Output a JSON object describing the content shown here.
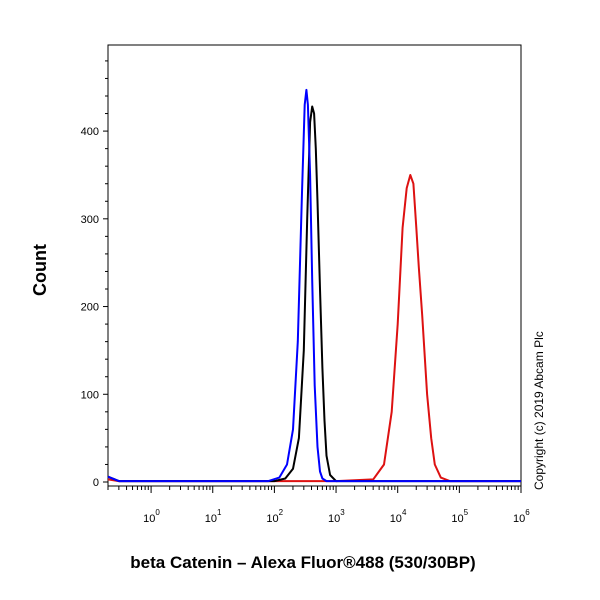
{
  "chart_data": {
    "type": "line",
    "title": "",
    "xlabel": "beta Catenin – Alexa Fluor®488 (530/30BP)",
    "ylabel": "Count",
    "x_scale": "log",
    "xlim": [
      0.2,
      1000000
    ],
    "ylim": [
      0,
      530
    ],
    "y_ticks": [
      0,
      100,
      200,
      300,
      400
    ],
    "x_ticks": [
      {
        "value": 1,
        "base": "10",
        "exp": "0"
      },
      {
        "value": 10,
        "base": "10",
        "exp": "1"
      },
      {
        "value": 100,
        "base": "10",
        "exp": "2"
      },
      {
        "value": 1000,
        "base": "10",
        "exp": "3"
      },
      {
        "value": 10000,
        "base": "10",
        "exp": "4"
      },
      {
        "value": 100000,
        "base": "10",
        "exp": "5"
      },
      {
        "value": 1000000,
        "base": "10",
        "exp": "6"
      }
    ],
    "annotation": "Copyright (c) 2019 Abcam Plc",
    "series": [
      {
        "color": "#0000ff",
        "x": [
          0.2,
          0.3,
          1,
          10,
          80,
          120,
          160,
          200,
          240,
          280,
          310,
          330,
          350,
          380,
          410,
          450,
          500,
          550,
          600,
          700,
          1000,
          10000,
          1000000
        ],
        "y": [
          6,
          1,
          1,
          1,
          1,
          5,
          20,
          60,
          160,
          330,
          430,
          447,
          430,
          350,
          230,
          110,
          40,
          12,
          4,
          1,
          1,
          1,
          1
        ]
      },
      {
        "color": "#000000",
        "x": [
          0.2,
          0.3,
          1,
          10,
          100,
          150,
          200,
          250,
          300,
          340,
          380,
          410,
          440,
          470,
          500,
          550,
          600,
          650,
          700,
          800,
          1000,
          10000,
          1000000
        ],
        "y": [
          6,
          1,
          1,
          1,
          1,
          4,
          15,
          50,
          150,
          300,
          410,
          428,
          420,
          380,
          320,
          220,
          130,
          70,
          30,
          8,
          1,
          1,
          1
        ]
      },
      {
        "color": "#dd1111",
        "x": [
          0.2,
          0.3,
          1,
          10,
          100,
          1000,
          4000,
          6000,
          8000,
          10000,
          12000,
          14000,
          16000,
          18000,
          20000,
          22000,
          25000,
          30000,
          35000,
          40000,
          50000,
          70000,
          1000000
        ],
        "y": [
          3,
          1,
          1,
          1,
          1,
          1,
          3,
          20,
          80,
          180,
          290,
          335,
          350,
          340,
          290,
          245,
          190,
          100,
          50,
          20,
          5,
          1,
          1
        ]
      }
    ]
  }
}
